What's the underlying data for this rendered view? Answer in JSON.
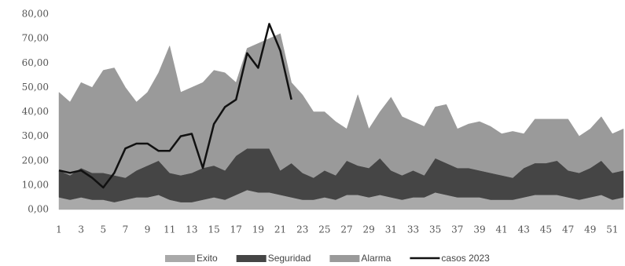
{
  "chart_data": {
    "type": "stacked-area-line",
    "categories": [
      "1",
      null,
      "3",
      null,
      "5",
      null,
      "7",
      null,
      "9",
      null,
      "11",
      null,
      "13",
      null,
      "15",
      null,
      "17",
      null,
      "19",
      null,
      "21",
      null,
      "23",
      null,
      "25",
      null,
      "27",
      null,
      "29",
      null,
      "31",
      null,
      "33",
      null,
      "35",
      null,
      "37",
      null,
      "39",
      null,
      "41",
      null,
      "43",
      null,
      "45",
      null,
      "47",
      null,
      "49",
      null,
      "51",
      null
    ],
    "series": [
      {
        "name": "Exito",
        "kind": "area",
        "color": "#a9a9a9",
        "values": [
          5,
          4,
          5,
          4,
          4,
          3,
          4,
          5,
          5,
          6,
          4,
          3,
          3,
          4,
          5,
          4,
          6,
          8,
          7,
          7,
          6,
          5,
          4,
          4,
          5,
          4,
          6,
          6,
          5,
          6,
          5,
          4,
          5,
          5,
          7,
          6,
          5,
          5,
          5,
          4,
          4,
          4,
          5,
          6,
          6,
          6,
          5,
          4,
          5,
          6,
          4,
          5
        ]
      },
      {
        "name": "Seguridad",
        "kind": "area",
        "color": "#454545",
        "values": [
          11,
          10,
          12,
          11,
          11,
          11,
          9,
          11,
          13,
          14,
          11,
          11,
          12,
          13,
          13,
          12,
          16,
          17,
          18,
          18,
          10,
          14,
          11,
          9,
          11,
          10,
          14,
          12,
          12,
          15,
          11,
          10,
          11,
          9,
          14,
          13,
          12,
          12,
          11,
          11,
          10,
          9,
          12,
          13,
          13,
          14,
          11,
          11,
          12,
          14,
          11,
          11
        ]
      },
      {
        "name": "Alarma",
        "kind": "area",
        "color": "#9a9a9a",
        "values": [
          32,
          30,
          35,
          35,
          42,
          44,
          37,
          28,
          30,
          36,
          52,
          34,
          35,
          35,
          39,
          40,
          30,
          41,
          43,
          45,
          56,
          33,
          32,
          27,
          24,
          22,
          13,
          29,
          16,
          19,
          30,
          24,
          20,
          20,
          21,
          24,
          16,
          18,
          20,
          19,
          17,
          19,
          14,
          18,
          18,
          17,
          21,
          15,
          16,
          18,
          16,
          17
        ]
      },
      {
        "name": "casos 2023",
        "kind": "line",
        "color": "#111111",
        "values": [
          16,
          15,
          16,
          13,
          9,
          15,
          25,
          27,
          27,
          24,
          24,
          30,
          31,
          17,
          35,
          42,
          45,
          64,
          58,
          76,
          65,
          45,
          null,
          null,
          null,
          null,
          null,
          null,
          null,
          null,
          null,
          null,
          null,
          null,
          null,
          null,
          null,
          null,
          null,
          null,
          null,
          null,
          null,
          null,
          null,
          null,
          null,
          null,
          null,
          null,
          null,
          null
        ]
      }
    ],
    "ylim": [
      0,
      80
    ],
    "yticks": [
      {
        "value": 0,
        "label": "0,00"
      },
      {
        "value": 10,
        "label": "10,00"
      },
      {
        "value": 20,
        "label": "20,00"
      },
      {
        "value": 30,
        "label": "30,00"
      },
      {
        "value": 40,
        "label": "40,00"
      },
      {
        "value": 50,
        "label": "50,00"
      },
      {
        "value": 60,
        "label": "60,00"
      },
      {
        "value": 70,
        "label": "70,00"
      },
      {
        "value": 80,
        "label": "80,00"
      }
    ],
    "grid": false,
    "legend": "bottom"
  }
}
